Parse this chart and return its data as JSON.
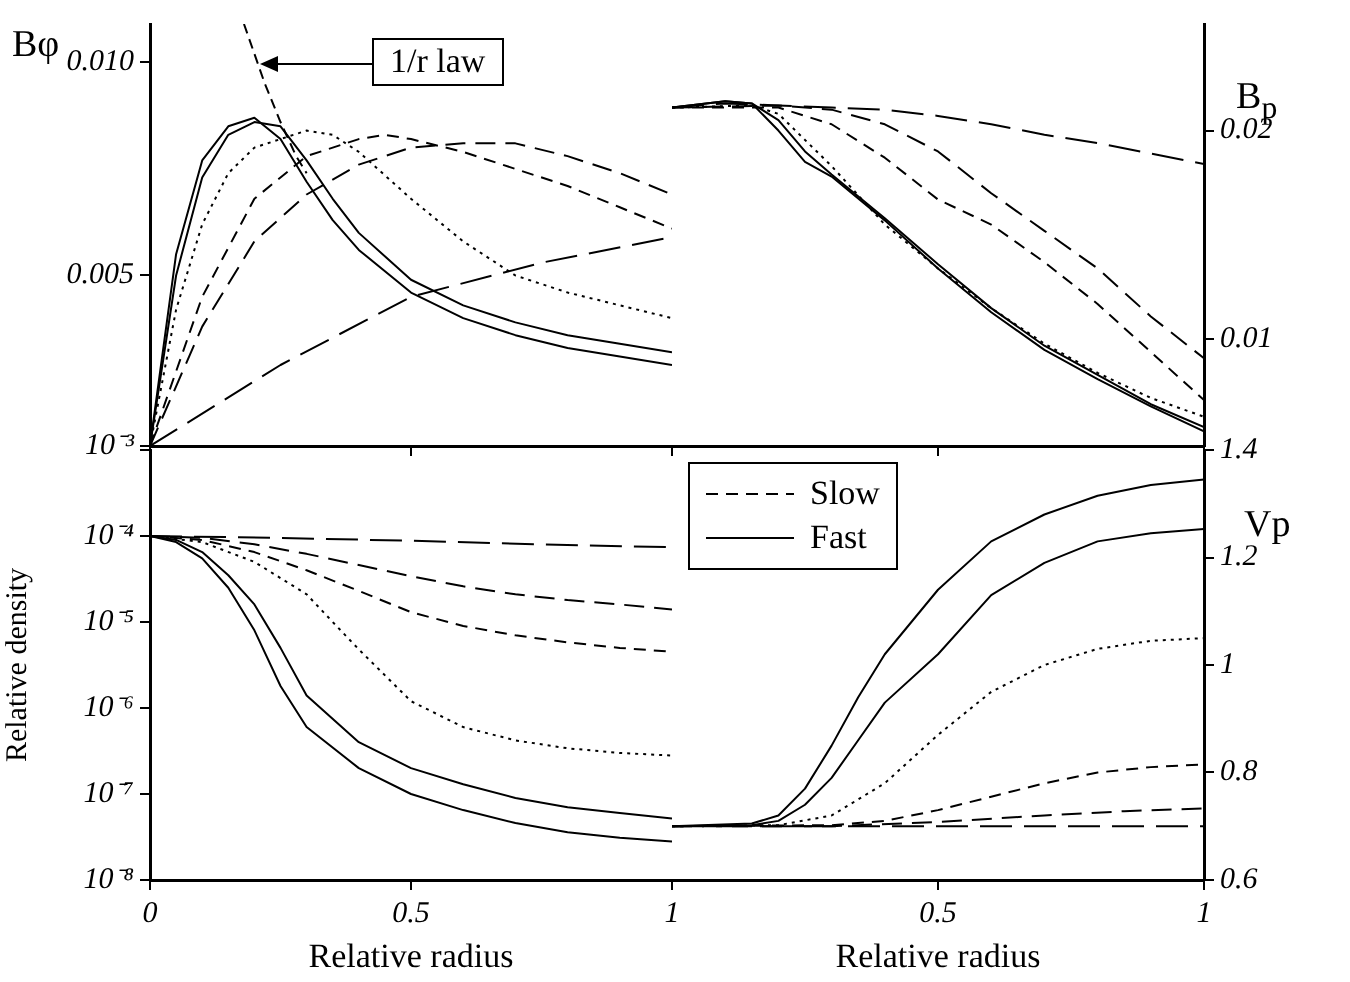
{
  "chart_data": [
    {
      "type": "line",
      "ylabel": "Bφ",
      "xlim": [
        0,
        1
      ],
      "xticks": [
        0,
        0.5,
        1
      ],
      "ylim": [
        0.001,
        0.0109
      ],
      "yticks": [
        {
          "value": 0.001,
          "label": "10⁻³"
        },
        0.005,
        {
          "value": 0.01,
          "label": "0.010"
        }
      ],
      "tick_labels": "y",
      "annotations": [
        "1/r law"
      ],
      "series": [
        {
          "color": "#000000",
          "line_style": "dashed",
          "x": [
            0,
            0.25,
            0.5,
            0.75,
            1
          ],
          "values": [
            0.001,
            0.0029,
            0.0045,
            0.0053,
            0.0059
          ]
        },
        {
          "color": "#000000",
          "line_style": "dashed",
          "x": [
            0,
            0.1,
            0.2,
            0.3,
            0.4,
            0.5,
            0.6,
            0.7,
            0.8,
            0.9,
            1
          ],
          "values": [
            0.001,
            0.0038,
            0.0058,
            0.0069,
            0.0076,
            0.008,
            0.0081,
            0.0081,
            0.0078,
            0.0074,
            0.0069
          ]
        },
        {
          "color": "#000000",
          "line_style": "dashed",
          "x": [
            0,
            0.1,
            0.2,
            0.3,
            0.4,
            0.45,
            0.5,
            0.6,
            0.7,
            0.8,
            0.9,
            1
          ],
          "values": [
            0.001,
            0.0045,
            0.0068,
            0.0078,
            0.0082,
            0.0083,
            0.0082,
            0.0079,
            0.0075,
            0.0071,
            0.0066,
            0.0061
          ]
        },
        {
          "color": "#000000",
          "line_style": "dotted",
          "x": [
            0,
            0.05,
            0.1,
            0.15,
            0.2,
            0.3,
            0.35,
            0.4,
            0.5,
            0.6,
            0.7,
            0.8,
            0.9,
            1
          ],
          "values": [
            0.001,
            0.0042,
            0.0062,
            0.0074,
            0.008,
            0.0084,
            0.0083,
            0.0079,
            0.0068,
            0.0058,
            0.005,
            0.0046,
            0.0043,
            0.004
          ]
        },
        {
          "color": "#000000",
          "line_style": "solid",
          "x": [
            0,
            0.05,
            0.1,
            0.15,
            0.2,
            0.25,
            0.3,
            0.35,
            0.4,
            0.5,
            0.6,
            0.7,
            0.8,
            0.9,
            1
          ],
          "values": [
            0.001,
            0.0055,
            0.0077,
            0.0085,
            0.0087,
            0.0082,
            0.0072,
            0.0063,
            0.0056,
            0.0046,
            0.004,
            0.0036,
            0.0033,
            0.0031,
            0.0029
          ]
        },
        {
          "color": "#000000",
          "line_style": "solid",
          "x": [
            0,
            0.05,
            0.1,
            0.15,
            0.2,
            0.25,
            0.3,
            0.35,
            0.4,
            0.5,
            0.6,
            0.7,
            0.8,
            0.9,
            1
          ],
          "values": [
            0.001,
            0.005,
            0.0073,
            0.0083,
            0.0086,
            0.0085,
            0.0077,
            0.0068,
            0.006,
            0.0049,
            0.0043,
            0.0039,
            0.0036,
            0.0034,
            0.0032
          ]
        },
        {
          "color": "#000000",
          "line_style": "dashed",
          "x": [
            0.18,
            0.2,
            0.22,
            0.25,
            0.28,
            0.3
          ],
          "values": [
            0.0109,
            0.0102,
            0.0095,
            0.0086,
            0.0078,
            0.0074
          ]
        }
      ]
    },
    {
      "type": "line",
      "ylabel": "B$_{p}$",
      "xlim": [
        0,
        1
      ],
      "xticks": [
        0,
        0.5,
        1
      ],
      "ylim": [
        0.0049,
        0.0251
      ],
      "yticks": [
        0.01,
        0.02
      ],
      "tick_labels": "y",
      "series": [
        {
          "color": "#000000",
          "line_style": "dashed",
          "x": [
            0,
            0.1,
            0.2,
            0.3,
            0.4,
            0.5,
            0.6,
            0.7,
            0.8,
            0.9,
            1
          ],
          "values": [
            0.0211,
            0.0213,
            0.0212,
            0.0211,
            0.021,
            0.0207,
            0.0203,
            0.0198,
            0.0194,
            0.0189,
            0.0184
          ]
        },
        {
          "color": "#000000",
          "line_style": "dashed",
          "x": [
            0,
            0.2,
            0.3,
            0.4,
            0.5,
            0.6,
            0.7,
            0.8,
            0.9,
            1
          ],
          "values": [
            0.0211,
            0.0212,
            0.021,
            0.0203,
            0.019,
            0.017,
            0.0152,
            0.0134,
            0.0111,
            0.0091
          ]
        },
        {
          "color": "#000000",
          "line_style": "dashed",
          "x": [
            0,
            0.2,
            0.3,
            0.4,
            0.5,
            0.6,
            0.7,
            0.8,
            0.9,
            1
          ],
          "values": [
            0.0211,
            0.0211,
            0.0203,
            0.0187,
            0.0167,
            0.0155,
            0.0137,
            0.0117,
            0.0094,
            0.0071
          ]
        },
        {
          "color": "#000000",
          "line_style": "dotted",
          "x": [
            0,
            0.15,
            0.2,
            0.3,
            0.4,
            0.5,
            0.6,
            0.7,
            0.8,
            0.9,
            1
          ],
          "values": [
            0.0211,
            0.0212,
            0.0208,
            0.0183,
            0.0155,
            0.0134,
            0.0115,
            0.0098,
            0.0084,
            0.0072,
            0.0063
          ]
        },
        {
          "color": "#000000",
          "line_style": "solid",
          "x": [
            0,
            0.1,
            0.15,
            0.2,
            0.25,
            0.3,
            0.4,
            0.5,
            0.6,
            0.7,
            0.8,
            0.9,
            1
          ],
          "values": [
            0.0211,
            0.0214,
            0.0213,
            0.02,
            0.0185,
            0.0178,
            0.0157,
            0.0134,
            0.0113,
            0.0095,
            0.0081,
            0.0068,
            0.0056
          ]
        },
        {
          "color": "#000000",
          "line_style": "solid",
          "x": [
            0,
            0.1,
            0.15,
            0.2,
            0.25,
            0.3,
            0.4,
            0.5,
            0.6,
            0.7,
            0.8,
            0.9,
            1
          ],
          "values": [
            0.0211,
            0.0214,
            0.0213,
            0.0205,
            0.019,
            0.0179,
            0.0158,
            0.0136,
            0.0115,
            0.0097,
            0.0083,
            0.0069,
            0.0058
          ]
        }
      ]
    },
    {
      "type": "line",
      "xlabel": "Relative radius",
      "ylabel": "Relative density",
      "log": true,
      "xlim": [
        0,
        1
      ],
      "xticks": [
        0,
        0.5,
        1
      ],
      "ylim": [
        1e-08,
        0.001
      ],
      "yticks": [
        {
          "value": 1e-08,
          "label": "10⁻⁸"
        },
        {
          "value": 1e-07,
          "label": "10⁻⁷"
        },
        {
          "value": 1e-06,
          "label": "10⁻⁶"
        },
        {
          "value": 1e-05,
          "label": "10⁻⁵"
        },
        {
          "value": 0.0001,
          "label": "10⁻⁴"
        },
        {
          "value": 0.001,
          "label": null
        }
      ],
      "series": [
        {
          "color": "#000000",
          "line_style": "dashed",
          "x": [
            0,
            0.25,
            0.5,
            0.75,
            1
          ],
          "values": [
            0.0001,
            9.5e-05,
            8.8e-05,
            8e-05,
            7.4e-05
          ]
        },
        {
          "color": "#000000",
          "line_style": "dashed",
          "x": [
            0,
            0.1,
            0.2,
            0.3,
            0.4,
            0.5,
            0.6,
            0.7,
            0.8,
            0.9,
            1
          ],
          "values": [
            0.0001,
            9.5e-05,
            8e-05,
            6.2e-05,
            4.6e-05,
            3.4e-05,
            2.6e-05,
            2.1e-05,
            1.8e-05,
            1.6e-05,
            1.4e-05
          ]
        },
        {
          "color": "#000000",
          "line_style": "dashed",
          "x": [
            0,
            0.1,
            0.2,
            0.3,
            0.4,
            0.5,
            0.6,
            0.7,
            0.8,
            0.9,
            1
          ],
          "values": [
            0.0001,
            9e-05,
            6.5e-05,
            4e-05,
            2.3e-05,
            1.3e-05,
            9e-06,
            7e-06,
            5.8e-06,
            5e-06,
            4.5e-06
          ]
        },
        {
          "color": "#000000",
          "line_style": "dotted",
          "x": [
            0,
            0.1,
            0.2,
            0.3,
            0.35,
            0.4,
            0.5,
            0.6,
            0.7,
            0.8,
            0.9,
            1
          ],
          "values": [
            0.0001,
            8.5e-05,
            5e-05,
            2.1e-05,
            1e-05,
            4.8e-06,
            1.2e-06,
            6e-07,
            4.2e-07,
            3.4e-07,
            3e-07,
            2.8e-07
          ]
        },
        {
          "color": "#000000",
          "line_style": "solid",
          "x": [
            0,
            0.05,
            0.1,
            0.15,
            0.2,
            0.25,
            0.3,
            0.4,
            0.5,
            0.6,
            0.7,
            0.8,
            0.9,
            1
          ],
          "values": [
            0.0001,
            9e-05,
            6.5e-05,
            3.5e-05,
            1.6e-05,
            5e-06,
            1.4e-06,
            4e-07,
            2e-07,
            1.3e-07,
            9e-08,
            7e-08,
            6e-08,
            5.2e-08
          ]
        },
        {
          "color": "#000000",
          "line_style": "solid",
          "x": [
            0,
            0.05,
            0.1,
            0.15,
            0.2,
            0.25,
            0.3,
            0.4,
            0.5,
            0.6,
            0.7,
            0.8,
            0.9,
            1
          ],
          "values": [
            0.0001,
            8.5e-05,
            5.5e-05,
            2.5e-05,
            8e-06,
            1.8e-06,
            6e-07,
            2e-07,
            1e-07,
            6.5e-08,
            4.6e-08,
            3.6e-08,
            3.1e-08,
            2.8e-08
          ]
        }
      ]
    },
    {
      "type": "line",
      "xlabel": "Relative radius",
      "ylabel": "Vp",
      "legend": "top left",
      "xlim": [
        0,
        1
      ],
      "xticks": [
        {
          "value": 0,
          "label": null
        },
        0.5,
        1
      ],
      "ylim": [
        0.6,
        1.4
      ],
      "yticks": [
        0.6,
        0.8,
        1,
        1.2,
        1.4
      ],
      "series": [
        {
          "color": "#000000",
          "line_style": "dashed",
          "x": [
            0,
            0.5,
            1
          ],
          "values": [
            0.7,
            0.7,
            0.7
          ]
        },
        {
          "name": "Slow",
          "color": "#000000",
          "line_style": "dashed",
          "x": [
            0,
            0.3,
            0.5,
            0.7,
            0.85,
            1
          ],
          "values": [
            0.7,
            0.7,
            0.708,
            0.72,
            0.728,
            0.733
          ]
        },
        {
          "color": "#000000",
          "line_style": "dashed",
          "x": [
            0,
            0.3,
            0.4,
            0.5,
            0.6,
            0.7,
            0.8,
            0.9,
            1
          ],
          "values": [
            0.7,
            0.702,
            0.71,
            0.73,
            0.755,
            0.78,
            0.8,
            0.81,
            0.815
          ]
        },
        {
          "color": "#000000",
          "line_style": "dotted",
          "x": [
            0,
            0.2,
            0.3,
            0.4,
            0.5,
            0.6,
            0.7,
            0.8,
            0.9,
            1
          ],
          "values": [
            0.7,
            0.702,
            0.72,
            0.78,
            0.87,
            0.95,
            1,
            1.03,
            1.045,
            1.05
          ]
        },
        {
          "name": "Fast",
          "color": "#000000",
          "line_style": "solid",
          "x": [
            0,
            0.15,
            0.2,
            0.25,
            0.3,
            0.35,
            0.4,
            0.5,
            0.6,
            0.7,
            0.8,
            0.9,
            1
          ],
          "values": [
            0.7,
            0.702,
            0.71,
            0.74,
            0.79,
            0.86,
            0.93,
            1.02,
            1.13,
            1.19,
            1.23,
            1.245,
            1.253
          ]
        },
        {
          "color": "#000000",
          "line_style": "solid",
          "x": [
            0,
            0.15,
            0.2,
            0.25,
            0.3,
            0.35,
            0.4,
            0.5,
            0.6,
            0.7,
            0.8,
            0.9,
            1
          ],
          "values": [
            0.7,
            0.705,
            0.72,
            0.77,
            0.85,
            0.94,
            1.02,
            1.14,
            1.23,
            1.28,
            1.315,
            1.335,
            1.345
          ]
        }
      ]
    }
  ]
}
